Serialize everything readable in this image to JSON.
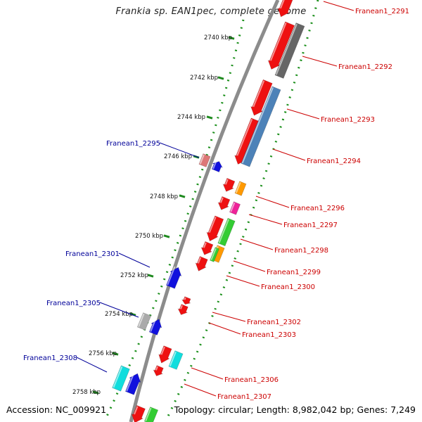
{
  "title": "Frankia sp. EAN1pec, complete genome",
  "footer": {
    "accession": "Accession: NC_009921",
    "topology": "Topology: circular; Length: 8,982,042 bp; Genes: 7,249"
  },
  "ruler": {
    "unit": "kbp",
    "ticks": [
      {
        "label": "2740 kbp"
      },
      {
        "label": "2742 kbp"
      },
      {
        "label": "2744 kbp"
      },
      {
        "label": "2746 kbp"
      },
      {
        "label": "2748 kbp"
      },
      {
        "label": "2750 kbp"
      },
      {
        "label": "2752 kbp"
      },
      {
        "label": "2754 kbp"
      },
      {
        "label": "2756 kbp"
      },
      {
        "label": "2758 kbp"
      }
    ]
  },
  "gene_labels": {
    "forward_color": "#cc0000",
    "reverse_color": "#000099",
    "forward": [
      "Franean1_2291",
      "Franean1_2292",
      "Franean1_2293",
      "Franean1_2294",
      "Franean1_2296",
      "Franean1_2297",
      "Franean1_2298",
      "Franean1_2299",
      "Franean1_2300",
      "Franean1_2302",
      "Franean1_2303",
      "Franean1_2306",
      "Franean1_2307"
    ],
    "reverse": [
      "Franean1_2295",
      "Franean1_2301",
      "Franean1_2305",
      "Franean1_2308"
    ]
  },
  "colors": {
    "backbone": "#8c8c8c",
    "dotted_line": "#1a8f1a",
    "forward_cds": "#ee1111",
    "reverse_cds": "#1111dd",
    "orf_gray": "#666666",
    "orf_blue": "#4d82b8",
    "orf_orange": "#ff9900",
    "orf_magenta": "#ee2299",
    "orf_green": "#33cc33",
    "orf_cyan": "#11dddd",
    "orf_pink": "#dd7777",
    "orf_lightgray": "#aaaaaa"
  }
}
